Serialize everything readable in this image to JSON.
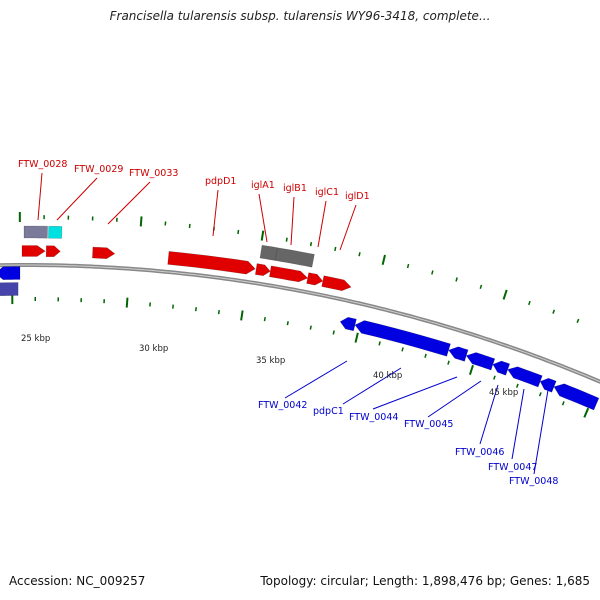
{
  "title": "Francisella tularensis subsp. tularensis WY96-3418, complete...",
  "footer": {
    "accession": "Accession: NC_009257",
    "summary": "Topology: circular; Length: 1,898,476 bp; Genes: 1,685"
  },
  "colors": {
    "forward": "#e00000",
    "reverse": "#0000e0",
    "forward_label": "#cc0000",
    "reverse_label": "#0000cc",
    "grey_gene": "#666666",
    "cyan_gene": "#00e0e0",
    "backbone": "#888888",
    "tick": "#006600"
  },
  "scale_labels": [
    "25 kbp",
    "30 kbp",
    "35 kbp",
    "40 kbp",
    "45 kbp"
  ],
  "forward_labels": [
    "FTW_0028",
    "FTW_0029",
    "FTW_0033",
    "pdpD1",
    "iglA1",
    "iglB1",
    "iglC1",
    "iglD1"
  ],
  "reverse_labels": [
    "FTW_0042",
    "pdpC1",
    "FTW_0044",
    "FTW_0045",
    "FTW_0046",
    "FTW_0047",
    "FTW_0048"
  ]
}
